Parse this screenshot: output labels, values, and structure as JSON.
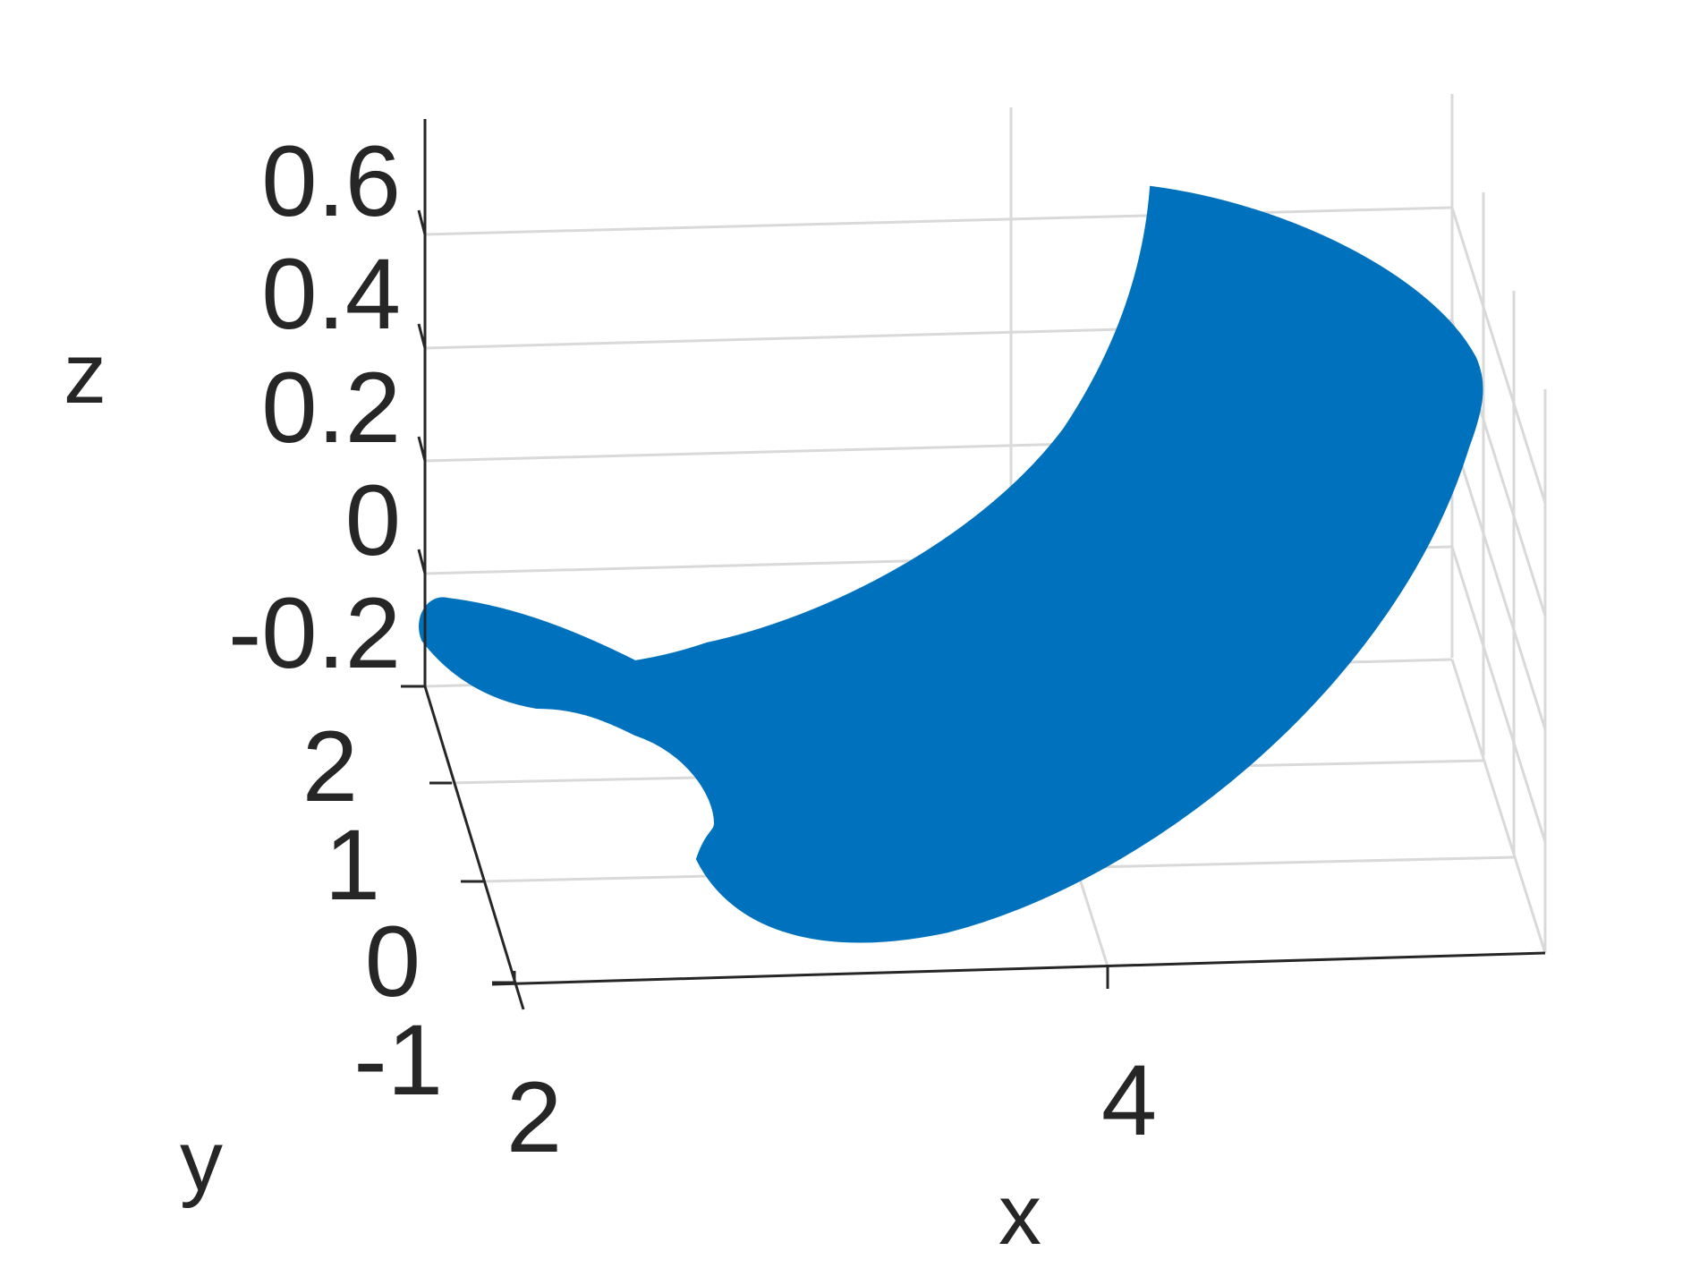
{
  "chart_data": {
    "type": "surface3d",
    "xlabel": "x",
    "ylabel": "y",
    "zlabel": "z",
    "x_ticks": [
      "2",
      "4"
    ],
    "y_ticks": [
      "-1",
      "0",
      "1",
      "2"
    ],
    "z_ticks": [
      "-0.2",
      "0",
      "0.2",
      "0.4",
      "0.6"
    ],
    "xlim": [
      2,
      5
    ],
    "ylim": [
      -1,
      2.6
    ],
    "zlim": [
      -0.3,
      0.7
    ],
    "grid": true,
    "surface_color": "#0072BD",
    "surface_outline": [
      {
        "x": 4.1,
        "y": 2.6,
        "z": 0.62
      },
      {
        "x": 4.7,
        "y": 2.5,
        "z": 0.45
      },
      {
        "x": 5.0,
        "y": 2.3,
        "z": 0.25
      },
      {
        "x": 4.8,
        "y": 1.5,
        "z": 0.05
      },
      {
        "x": 4.3,
        "y": 0.8,
        "z": -0.1
      },
      {
        "x": 3.6,
        "y": 0.3,
        "z": -0.2
      },
      {
        "x": 2.8,
        "y": 0.0,
        "z": -0.25
      },
      {
        "x": 2.6,
        "y": 0.4,
        "z": -0.15
      },
      {
        "x": 2.7,
        "y": 0.8,
        "z": -0.05
      },
      {
        "x": 2.5,
        "y": 1.2,
        "z": -0.1
      },
      {
        "x": 2.0,
        "y": 1.6,
        "z": -0.25
      },
      {
        "x": 2.0,
        "y": 1.8,
        "z": -0.2
      },
      {
        "x": 2.6,
        "y": 1.7,
        "z": -0.15
      },
      {
        "x": 3.4,
        "y": 2.0,
        "z": 0.05
      },
      {
        "x": 4.0,
        "y": 2.4,
        "z": 0.4
      }
    ]
  }
}
